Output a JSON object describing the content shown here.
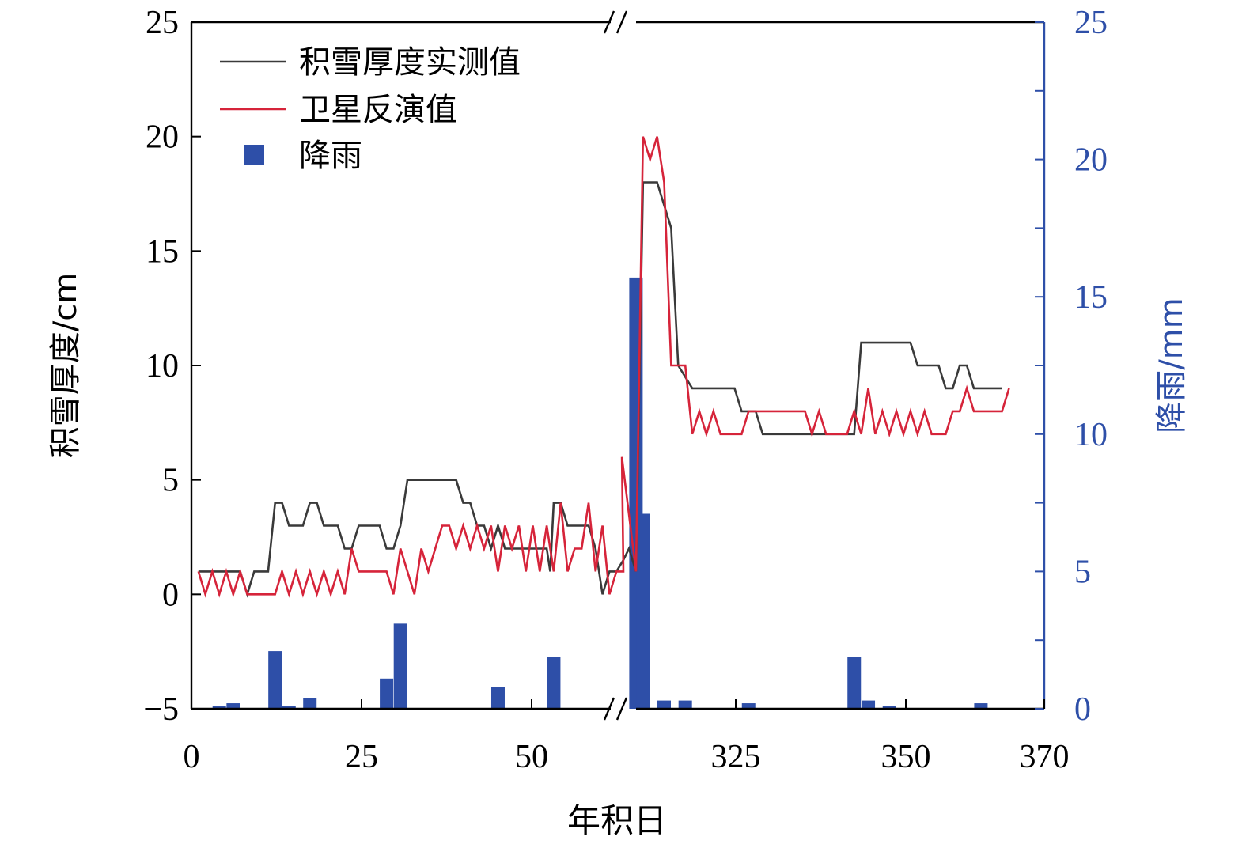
{
  "colors": {
    "measured": "#3a3a3a",
    "satellite": "#d6243a",
    "rain": "#2e4fa8",
    "axis": "#000000",
    "right_axis": "#2e4fa8"
  },
  "chart_data": {
    "type": "line",
    "title": "",
    "xlabel": "年积日",
    "ylabel_left": "积雪厚度/cm",
    "ylabel_right": "降雨/mm",
    "x_axis": {
      "broken": true,
      "break_marker": "//",
      "segments": [
        {
          "range": [
            0,
            62
          ]
        },
        {
          "range": [
            311,
            370
          ]
        }
      ],
      "tick_labels": [
        "0",
        "25",
        "50",
        "325",
        "350",
        "370"
      ]
    },
    "y_left": {
      "lim": [
        -5,
        25
      ],
      "ticks": [
        -5,
        0,
        5,
        10,
        15,
        20,
        25
      ],
      "tick_labels": [
        "−5",
        "0",
        "5",
        "10",
        "15",
        "20",
        "25"
      ]
    },
    "y_right": {
      "lim": [
        0,
        25
      ],
      "ticks": [
        0,
        5,
        10,
        15,
        20,
        25
      ],
      "minor_step": 2.5,
      "tick_labels": [
        "0",
        "5",
        "10",
        "15",
        "20",
        "25"
      ]
    },
    "legend": {
      "position": "top-left",
      "entries": [
        "积雪厚度实测值",
        "卫星反演值",
        "降雨"
      ]
    },
    "series": [
      {
        "name": "积雪厚度实测值",
        "type": "line",
        "points": [
          [
            1,
            1
          ],
          [
            7,
            1
          ],
          [
            8,
            0
          ],
          [
            9,
            1
          ],
          [
            11,
            1
          ],
          [
            12,
            4
          ],
          [
            13,
            4
          ],
          [
            14,
            3
          ],
          [
            16,
            3
          ],
          [
            17,
            4
          ],
          [
            18,
            4
          ],
          [
            19,
            3
          ],
          [
            21,
            3
          ],
          [
            22,
            2
          ],
          [
            23,
            2
          ],
          [
            24,
            3
          ],
          [
            27,
            3
          ],
          [
            28,
            2
          ],
          [
            29,
            2
          ],
          [
            30,
            3
          ],
          [
            31,
            5
          ],
          [
            38,
            5
          ],
          [
            39,
            4
          ],
          [
            40,
            4
          ],
          [
            41,
            3
          ],
          [
            42,
            3
          ],
          [
            43,
            2
          ],
          [
            44,
            3
          ],
          [
            45,
            2
          ],
          [
            51,
            2
          ],
          [
            51.5,
            1
          ],
          [
            52,
            4
          ],
          [
            53,
            4
          ],
          [
            54,
            3
          ],
          [
            57,
            3
          ],
          [
            58,
            2
          ],
          [
            59,
            0
          ],
          [
            60,
            1
          ],
          [
            61,
            1
          ],
          [
            62,
            1.5
          ],
          [
            311,
            2
          ],
          [
            312,
            1
          ],
          [
            313,
            18
          ],
          [
            315,
            18
          ],
          [
            317,
            16
          ],
          [
            318,
            10
          ],
          [
            320,
            9
          ],
          [
            326,
            9
          ],
          [
            327,
            8
          ],
          [
            329,
            8
          ],
          [
            330,
            7
          ],
          [
            343,
            7
          ],
          [
            344,
            11
          ],
          [
            351,
            11
          ],
          [
            352,
            10
          ],
          [
            355,
            10
          ],
          [
            356,
            9
          ],
          [
            357,
            9
          ],
          [
            358,
            10
          ],
          [
            359,
            10
          ],
          [
            360,
            9
          ],
          [
            364,
            9
          ]
        ]
      },
      {
        "name": "卫星反演值",
        "type": "line",
        "points": [
          [
            1,
            1
          ],
          [
            2,
            0
          ],
          [
            3,
            1
          ],
          [
            4,
            0
          ],
          [
            5,
            1
          ],
          [
            6,
            0
          ],
          [
            7,
            1
          ],
          [
            8,
            0
          ],
          [
            12,
            0
          ],
          [
            13,
            1
          ],
          [
            14,
            0
          ],
          [
            15,
            1
          ],
          [
            16,
            0
          ],
          [
            17,
            1
          ],
          [
            18,
            0
          ],
          [
            19,
            1
          ],
          [
            20,
            0
          ],
          [
            21,
            1
          ],
          [
            22,
            0
          ],
          [
            23,
            2
          ],
          [
            24,
            1
          ],
          [
            28,
            1
          ],
          [
            29,
            0
          ],
          [
            30,
            2
          ],
          [
            31,
            1
          ],
          [
            32,
            0
          ],
          [
            33,
            2
          ],
          [
            34,
            1
          ],
          [
            35,
            2
          ],
          [
            36,
            3
          ],
          [
            37,
            3
          ],
          [
            38,
            2
          ],
          [
            39,
            3
          ],
          [
            40,
            2
          ],
          [
            41,
            3
          ],
          [
            42,
            2
          ],
          [
            43,
            3
          ],
          [
            44,
            1
          ],
          [
            45,
            3
          ],
          [
            46,
            2
          ],
          [
            47,
            3
          ],
          [
            48,
            1
          ],
          [
            49,
            3
          ],
          [
            50,
            1
          ],
          [
            51,
            3
          ],
          [
            52,
            1
          ],
          [
            53,
            4
          ],
          [
            54,
            1
          ],
          [
            55,
            2
          ],
          [
            56,
            2
          ],
          [
            57,
            4
          ],
          [
            58,
            1
          ],
          [
            59,
            3
          ],
          [
            60,
            0
          ],
          [
            61,
            1
          ],
          [
            62,
            1
          ],
          [
            310,
            6
          ],
          [
            312,
            1
          ],
          [
            313,
            20
          ],
          [
            314,
            19
          ],
          [
            315,
            20
          ],
          [
            316,
            18
          ],
          [
            317,
            10
          ],
          [
            319,
            10
          ],
          [
            320,
            7
          ],
          [
            321,
            8
          ],
          [
            322,
            7
          ],
          [
            323,
            8
          ],
          [
            324,
            7
          ],
          [
            327,
            7
          ],
          [
            328,
            8
          ],
          [
            336,
            8
          ],
          [
            337,
            7
          ],
          [
            338,
            8
          ],
          [
            339,
            7
          ],
          [
            342,
            7
          ],
          [
            343,
            8
          ],
          [
            344,
            7
          ],
          [
            345,
            9
          ],
          [
            346,
            7
          ],
          [
            347,
            8
          ],
          [
            348,
            7
          ],
          [
            349,
            8
          ],
          [
            350,
            7
          ],
          [
            351,
            8
          ],
          [
            352,
            7
          ],
          [
            353,
            8
          ],
          [
            354,
            7
          ],
          [
            356,
            7
          ],
          [
            357,
            8
          ],
          [
            358,
            8
          ],
          [
            359,
            9
          ],
          [
            360,
            8
          ],
          [
            364,
            8
          ],
          [
            365,
            9
          ]
        ]
      },
      {
        "name": "降雨",
        "type": "bar",
        "unit": "mm",
        "axis": "right",
        "points": [
          [
            4,
            0.1
          ],
          [
            6,
            0.2
          ],
          [
            12,
            2.1
          ],
          [
            14,
            0.1
          ],
          [
            17,
            0.4
          ],
          [
            28,
            1.1
          ],
          [
            30,
            3.1
          ],
          [
            44,
            0.8
          ],
          [
            52,
            1.9
          ],
          [
            312,
            15.7
          ],
          [
            313,
            7.1
          ],
          [
            316,
            0.3
          ],
          [
            319,
            0.3
          ],
          [
            328,
            0.2
          ],
          [
            343,
            1.9
          ],
          [
            345,
            0.3
          ],
          [
            348,
            0.1
          ],
          [
            361,
            0.2
          ]
        ]
      }
    ]
  }
}
